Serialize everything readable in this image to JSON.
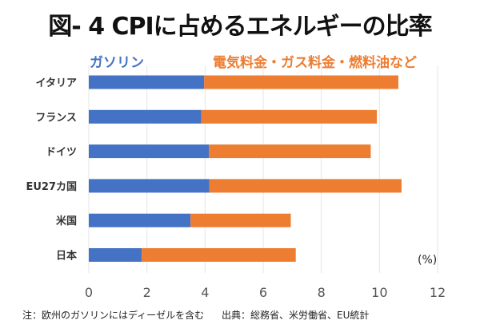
{
  "title": "図- 4 CPIに占めるエネルギーの比率",
  "legend": {
    "gasoline": "ガソリン",
    "other": "電気料金・ガス料金・燃料油など"
  },
  "unit": "(%)",
  "footnote": "注：欧州のガソリンにはディーゼルを含む",
  "source": "出典：総務省、米労働省、EU統計",
  "colors": {
    "gasoline": "#4472c4",
    "other": "#ed7d31",
    "grid": "#e6e6e6"
  },
  "chart_data": {
    "type": "bar",
    "orientation": "horizontal",
    "stacked": true,
    "title": "図- 4 CPIに占めるエネルギーの比率",
    "categories": [
      "イタリア",
      "フランス",
      "ドイツ",
      "EU27カ国",
      "米国",
      "日本"
    ],
    "series": [
      {
        "name": "ガソリン",
        "values": [
          3.97,
          3.87,
          4.13,
          4.15,
          3.5,
          1.82
        ]
      },
      {
        "name": "電気料金・ガス料金・燃料油など",
        "values": [
          6.68,
          6.04,
          5.57,
          6.61,
          3.45,
          5.3
        ]
      }
    ],
    "xlim": [
      0,
      12
    ],
    "xticks": [
      "0",
      "2",
      "4",
      "6",
      "8",
      "10",
      "12"
    ],
    "xlabel": "(%)",
    "grid": true,
    "legend_placement": "top"
  }
}
